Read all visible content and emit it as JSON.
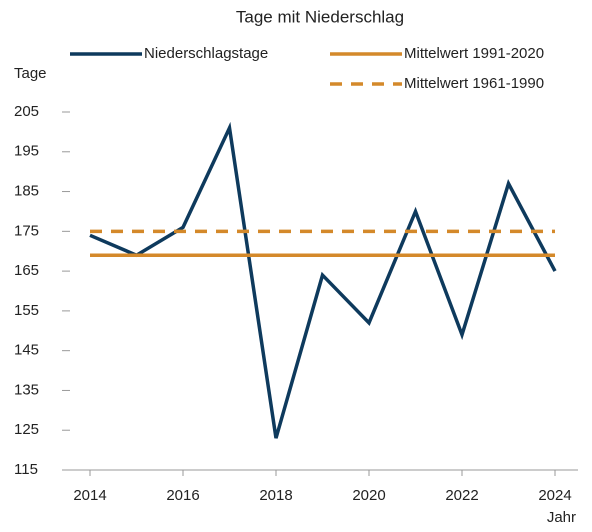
{
  "chart_data": {
    "type": "line",
    "title": "Tage mit Niederschlag",
    "ylabel": "Tage",
    "xlabel": "Jahr",
    "x": [
      2014,
      2015,
      2016,
      2017,
      2018,
      2019,
      2020,
      2021,
      2022,
      2023,
      2024
    ],
    "series": [
      {
        "name": "Niederschlagstage",
        "color": "#0e3a5d",
        "dashed": false,
        "values": [
          174,
          169,
          176,
          201,
          123,
          164,
          152,
          180,
          149,
          187,
          165
        ]
      },
      {
        "name": "Mittelwert 1991-2020",
        "color": "#d4892a",
        "dashed": false,
        "values": [
          169,
          169,
          169,
          169,
          169,
          169,
          169,
          169,
          169,
          169,
          169
        ]
      },
      {
        "name": "Mittelwert 1961-1990",
        "color": "#d4892a",
        "dashed": true,
        "values": [
          175,
          175,
          175,
          175,
          175,
          175,
          175,
          175,
          175,
          175,
          175
        ]
      }
    ],
    "xlim": [
      2014,
      2024
    ],
    "xticks": [
      2014,
      2016,
      2018,
      2020,
      2022,
      2024
    ],
    "ylim": [
      115,
      205
    ],
    "yticks": [
      115,
      125,
      135,
      145,
      155,
      165,
      175,
      185,
      195,
      205
    ],
    "grid": false
  }
}
